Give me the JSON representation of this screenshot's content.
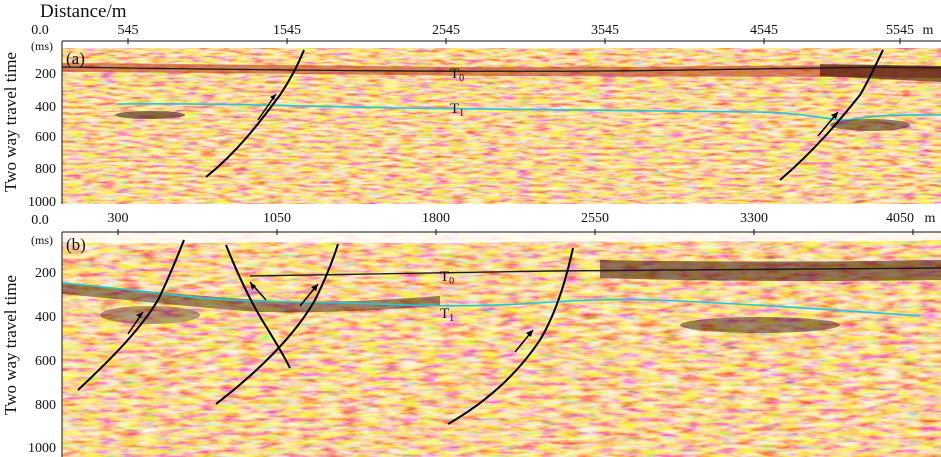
{
  "header": {
    "distance_label": "Distance/m"
  },
  "ylabel": "Two way travel time",
  "panels": [
    {
      "id": "a",
      "panel_label": "(a)",
      "unit": "(ms)",
      "x_ticks": [
        "545",
        "1545",
        "2545",
        "3545",
        "4545",
        "5545"
      ],
      "x_unit": "m",
      "y_top": "0.0",
      "y_ticks": [
        "200",
        "400",
        "600",
        "800",
        "1000"
      ],
      "horizons": [
        {
          "name": "T0",
          "base": "T",
          "sub": "0",
          "color": "#1a1a1a"
        },
        {
          "name": "T1",
          "base": "T",
          "sub": "1",
          "color": "#26c6da"
        }
      ]
    },
    {
      "id": "b",
      "panel_label": "(b)",
      "unit": "(ms)",
      "x_ticks": [
        "300",
        "1050",
        "1800",
        "2550",
        "3300",
        "4050"
      ],
      "x_unit": "m",
      "y_top": "0.0",
      "y_ticks": [
        "200",
        "400",
        "600",
        "800",
        "1000"
      ],
      "horizons": [
        {
          "name": "T0",
          "base": "T",
          "sub": "0",
          "color": "#1a1a1a"
        },
        {
          "name": "T1",
          "base": "T",
          "sub": "1",
          "color": "#26c6da"
        }
      ]
    }
  ],
  "colors": {
    "seismic_base": "#e8b458",
    "seismic_dark": "#b03a12",
    "seismic_red": "#d4381e",
    "seismic_light": "#f6e7a7",
    "fault_line": "#000000",
    "horizon_T1": "#26c6da"
  }
}
